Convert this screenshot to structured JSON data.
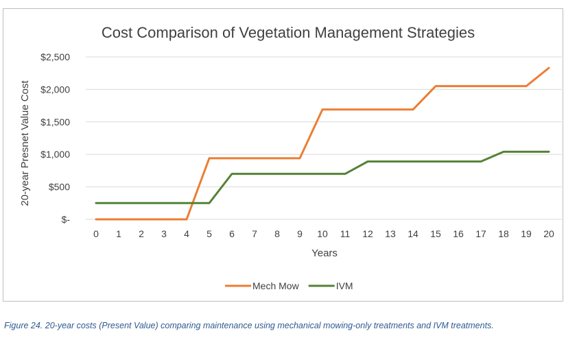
{
  "chart_data": {
    "type": "line",
    "title": "Cost Comparison of  Vegetation Management Strategies",
    "xlabel": "Years",
    "ylabel": "20-year Presnet Value Cost",
    "x": [
      0,
      1,
      2,
      3,
      4,
      5,
      6,
      7,
      8,
      9,
      10,
      11,
      12,
      13,
      14,
      15,
      16,
      17,
      18,
      19,
      20
    ],
    "ylim": [
      0,
      2500
    ],
    "yticks": [
      0,
      500,
      1000,
      1500,
      2000,
      2500
    ],
    "ytick_labels": [
      "$-",
      "$500",
      "$1,000",
      "$1,500",
      "$2,000",
      "$2,500"
    ],
    "grid": "horizontal",
    "legend_position": "bottom",
    "series": [
      {
        "name": "Mech Mow",
        "color": "#ed7d31",
        "values": [
          0,
          0,
          0,
          0,
          0,
          940,
          940,
          940,
          940,
          940,
          1690,
          1690,
          1690,
          1690,
          1690,
          2050,
          2050,
          2050,
          2050,
          2050,
          2330
        ]
      },
      {
        "name": "IVM",
        "color": "#548235",
        "values": [
          250,
          250,
          250,
          250,
          250,
          250,
          700,
          700,
          700,
          700,
          700,
          700,
          890,
          890,
          890,
          890,
          890,
          890,
          1040,
          1040,
          1040
        ]
      }
    ]
  },
  "caption": "Figure 24. 20-year costs (Present Value) comparing maintenance using mechanical mowing-only treatments and IVM treatments."
}
